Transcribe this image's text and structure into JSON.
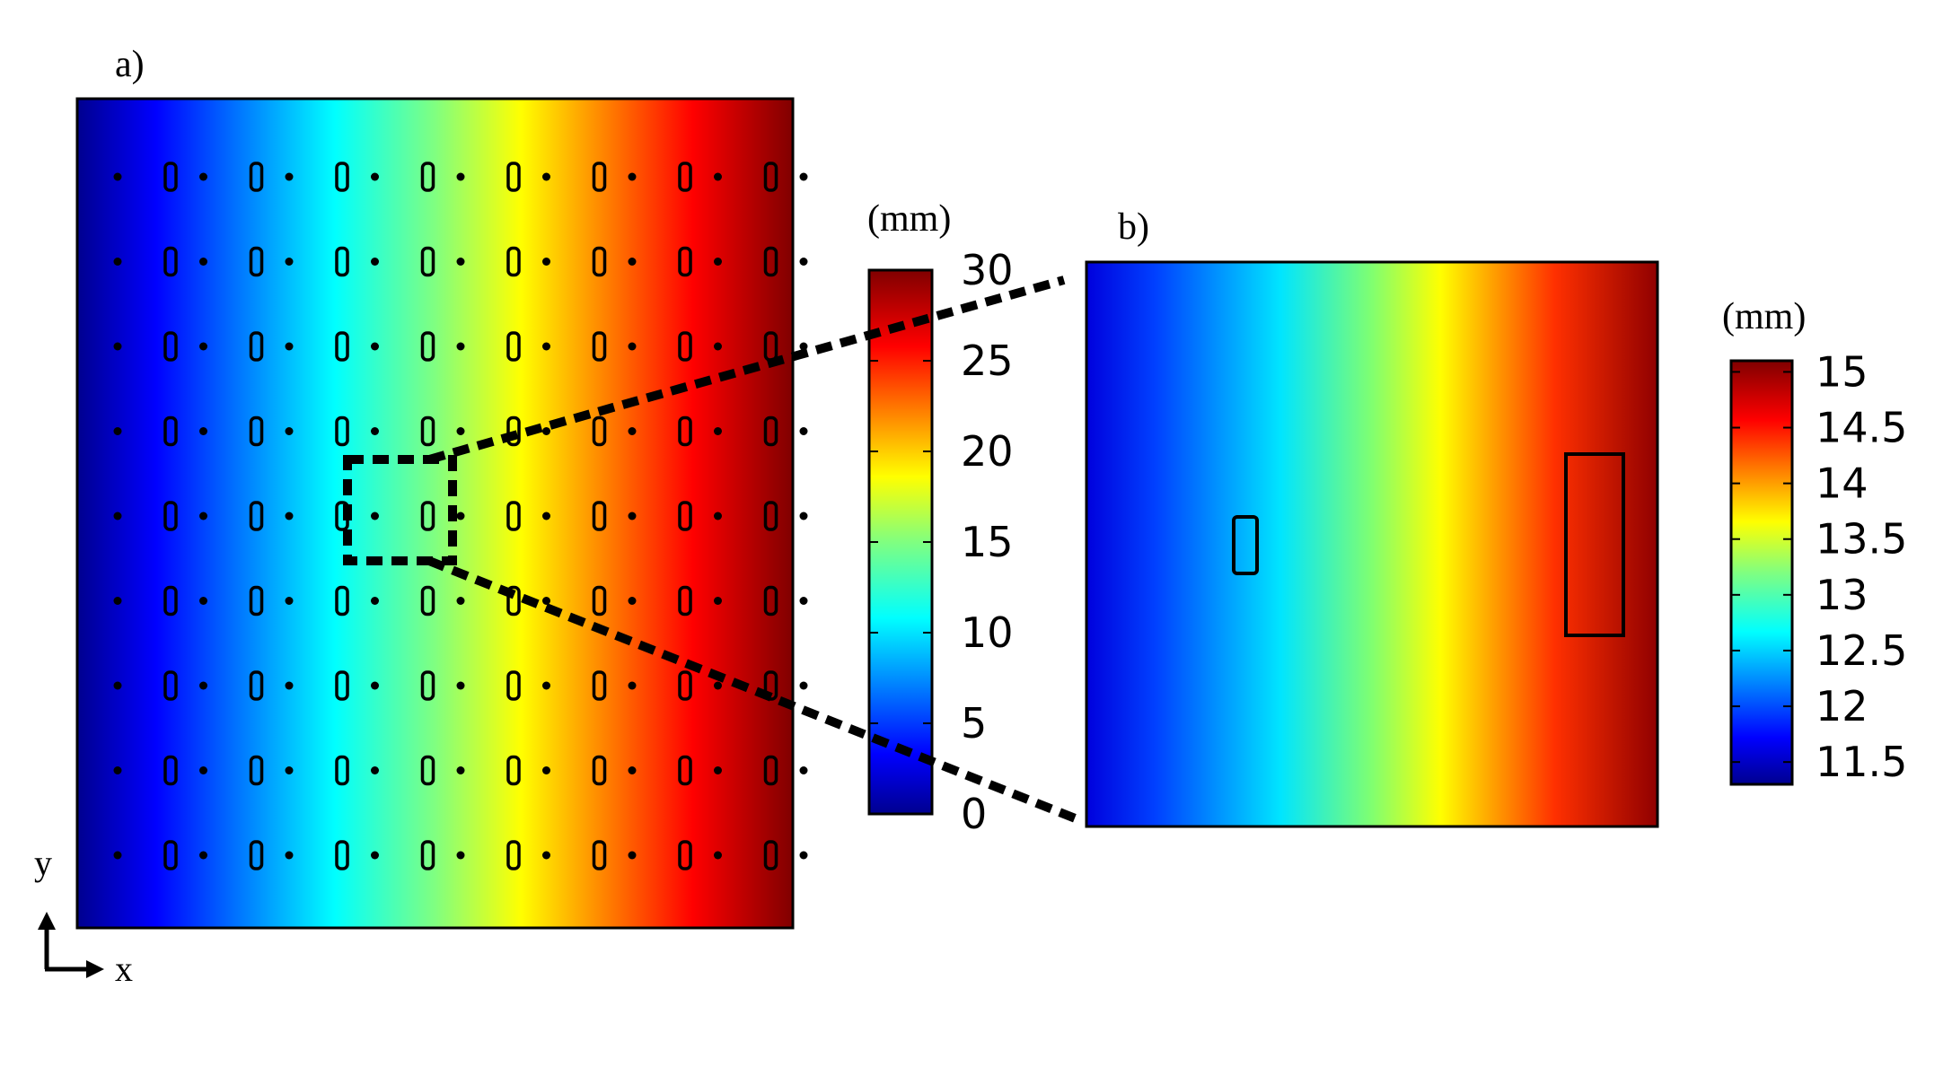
{
  "panel_a": {
    "label": "a)",
    "colorbar": {
      "unit": "(mm)",
      "ticks": [
        "0",
        "5",
        "10",
        "15",
        "20",
        "25",
        "30"
      ],
      "range": [
        0,
        30
      ]
    },
    "grid": {
      "rows": 9,
      "dot_columns": 9,
      "slot_columns": 8
    }
  },
  "panel_b": {
    "label": "b)",
    "colorbar": {
      "unit": "(mm)",
      "ticks": [
        "11.5",
        "12",
        "12.5",
        "13",
        "13.5",
        "14",
        "14.5",
        "15"
      ],
      "range": [
        11.3,
        15.1
      ]
    }
  },
  "axes": {
    "y": "y",
    "x": "x"
  },
  "colors": {
    "jet": [
      "#00008f",
      "#0000ff",
      "#0080ff",
      "#00ffff",
      "#80ff80",
      "#ffff00",
      "#ff8000",
      "#ff0000",
      "#800000"
    ],
    "outline": "#000000"
  }
}
